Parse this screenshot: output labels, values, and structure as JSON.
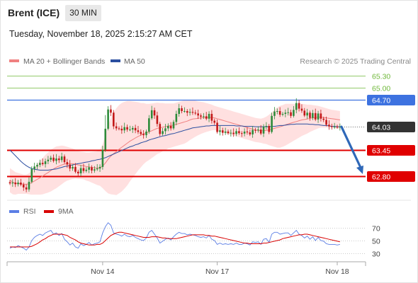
{
  "header": {
    "instrument": "Brent (ICE)",
    "timeframe": "30 MIN",
    "timestamp": "Tuesday, November 18, 2025 2:15:27 AM CET"
  },
  "copyright": "Research © 2025 Trading Central",
  "colors": {
    "bullish": "#2e8b3a",
    "bearish": "#c21818",
    "ma20": "#f08080",
    "bands": "#ffd6d6",
    "ma50": "#2b4fa0",
    "resistance_target": "#6fb83a",
    "pivot": "#3d72e0",
    "support": "#e00000",
    "last_price": "#333333",
    "rsi": "#5b7ee5",
    "rsi_ma": "#d80000",
    "arrow": "#2f68b8"
  },
  "chart_data": [
    {
      "type": "candlestick",
      "legend": [
        {
          "name": "MA 20 + Bollinger Bands",
          "color": "#f08080"
        },
        {
          "name": "MA 50",
          "color": "#2b4fa0"
        }
      ],
      "legend_position": "top-left",
      "x_ticks": [
        "Nov 14",
        "Nov 17",
        "Nov 18"
      ],
      "ylim": [
        62.55,
        65.5
      ],
      "grid": false,
      "levels": [
        {
          "label": "65.30",
          "value": 65.3,
          "kind": "target"
        },
        {
          "label": "65.00",
          "value": 65.0,
          "kind": "target"
        },
        {
          "label": "64.70",
          "value": 64.7,
          "kind": "pivot"
        },
        {
          "label": "64.03",
          "value": 64.03,
          "kind": "last"
        },
        {
          "label": "63.45",
          "value": 63.45,
          "kind": "support"
        },
        {
          "label": "62.80",
          "value": 62.8,
          "kind": "support"
        }
      ],
      "closes": [
        62.62,
        62.64,
        62.6,
        62.64,
        62.59,
        62.52,
        62.47,
        62.66,
        62.98,
        63.04,
        63.08,
        63.13,
        63.1,
        63.17,
        63.21,
        63.26,
        63.18,
        63.24,
        63.2,
        63.29,
        63.15,
        63.09,
        62.99,
        63.03,
        62.91,
        62.87,
        63.0,
        62.93,
        62.96,
        63.02,
        62.94,
        62.97,
        62.99,
        63.03,
        63.46,
        63.98,
        64.46,
        64.38,
        64.04,
        63.99,
        63.98,
        63.94,
        64.02,
        63.96,
        63.96,
        64.0,
        63.94,
        63.9,
        63.85,
        63.82,
        63.91,
        64.24,
        64.44,
        64.31,
        64.1,
        63.85,
        63.92,
        63.99,
        64.05,
        63.99,
        64.15,
        64.35,
        64.49,
        64.42,
        64.42,
        64.38,
        64.4,
        64.38,
        64.36,
        64.31,
        64.28,
        64.29,
        64.23,
        64.35,
        64.18,
        64.13,
        63.9,
        63.94,
        63.88,
        63.91,
        63.87,
        63.88,
        63.85,
        63.92,
        63.87,
        63.86,
        63.91,
        63.89,
        63.84,
        63.95,
        63.94,
        63.96,
        63.86,
        64.03,
        64.05,
        63.9,
        64.3,
        64.41,
        64.42,
        64.33,
        64.35,
        64.38,
        64.39,
        64.3,
        64.45,
        64.62,
        64.48,
        64.43,
        64.31,
        64.38,
        64.25,
        64.37,
        64.21,
        64.36,
        64.23,
        64.2,
        64.08,
        64.04,
        64.03,
        64.03,
        64.02,
        64.03
      ],
      "ma20": [
        62.7,
        62.65,
        62.62,
        62.62,
        62.61,
        62.6,
        62.6,
        62.61,
        62.64,
        62.68,
        62.72,
        62.76,
        62.8,
        62.85,
        62.89,
        62.94,
        62.98,
        63.02,
        63.05,
        63.08,
        63.1,
        63.11,
        63.11,
        63.11,
        63.1,
        63.08,
        63.07,
        63.06,
        63.04,
        63.03,
        63.02,
        63.01,
        63.0,
        63.01,
        63.05,
        63.13,
        63.22,
        63.3,
        63.36,
        63.41,
        63.47,
        63.52,
        63.57,
        63.62,
        63.67,
        63.71,
        63.75,
        63.79,
        63.82,
        63.86,
        63.88,
        63.9,
        63.93,
        63.96,
        63.99,
        64.0,
        64.02,
        64.03,
        64.05,
        64.06,
        64.07,
        64.09,
        64.11,
        64.13,
        64.15,
        64.17,
        64.2,
        64.22,
        64.23,
        64.24,
        64.25,
        64.26,
        64.26,
        64.26,
        64.26,
        64.25,
        64.23,
        64.21,
        64.19,
        64.17,
        64.15,
        64.13,
        64.11,
        64.09,
        64.07,
        64.05,
        64.03,
        64.01,
        63.99,
        63.97,
        63.95,
        63.94,
        63.93,
        63.93,
        63.94,
        63.95,
        63.97,
        63.99,
        64.01,
        64.03,
        64.05,
        64.08,
        64.1,
        64.12,
        64.14,
        64.16,
        64.18,
        64.2,
        64.21,
        64.22,
        64.24,
        64.25,
        64.26,
        64.27,
        64.27,
        64.26,
        64.25,
        64.24,
        64.23,
        64.22,
        64.21,
        64.2
      ],
      "band_width": [
        0.3,
        0.3,
        0.28,
        0.26,
        0.25,
        0.24,
        0.24,
        0.26,
        0.3,
        0.34,
        0.38,
        0.42,
        0.45,
        0.48,
        0.5,
        0.52,
        0.52,
        0.52,
        0.5,
        0.48,
        0.45,
        0.42,
        0.4,
        0.38,
        0.36,
        0.35,
        0.34,
        0.34,
        0.35,
        0.36,
        0.38,
        0.4,
        0.42,
        0.45,
        0.55,
        0.7,
        0.85,
        0.95,
        1.02,
        1.08,
        1.1,
        1.1,
        1.08,
        1.05,
        1.0,
        0.95,
        0.9,
        0.85,
        0.8,
        0.76,
        0.72,
        0.7,
        0.68,
        0.66,
        0.64,
        0.62,
        0.6,
        0.58,
        0.56,
        0.55,
        0.54,
        0.54,
        0.54,
        0.54,
        0.54,
        0.52,
        0.5,
        0.48,
        0.45,
        0.42,
        0.4,
        0.38,
        0.36,
        0.34,
        0.32,
        0.3,
        0.3,
        0.3,
        0.3,
        0.3,
        0.3,
        0.3,
        0.3,
        0.3,
        0.3,
        0.3,
        0.3,
        0.3,
        0.3,
        0.3,
        0.3,
        0.3,
        0.3,
        0.32,
        0.34,
        0.38,
        0.42,
        0.46,
        0.5,
        0.52,
        0.52,
        0.52,
        0.5,
        0.48,
        0.46,
        0.44,
        0.42,
        0.4,
        0.38,
        0.36,
        0.34,
        0.32,
        0.3,
        0.28,
        0.26,
        0.25,
        0.24,
        0.23,
        0.22,
        0.22,
        0.22,
        0.22
      ],
      "ma50": [
        63.45,
        63.38,
        63.31,
        63.24,
        63.17,
        63.11,
        63.06,
        63.02,
        62.99,
        62.97,
        62.96,
        62.95,
        62.95,
        62.95,
        62.95,
        62.96,
        62.97,
        62.98,
        63.0,
        63.02,
        63.04,
        63.05,
        63.07,
        63.08,
        63.1,
        63.11,
        63.12,
        63.14,
        63.15,
        63.16,
        63.18,
        63.19,
        63.21,
        63.22,
        63.24,
        63.26,
        63.29,
        63.32,
        63.35,
        63.38,
        63.41,
        63.44,
        63.47,
        63.5,
        63.53,
        63.55,
        63.58,
        63.6,
        63.63,
        63.65,
        63.67,
        63.7,
        63.72,
        63.74,
        63.76,
        63.78,
        63.8,
        63.81,
        63.83,
        63.85,
        63.86,
        63.88,
        63.9,
        63.92,
        63.94,
        63.96,
        63.98,
        64.0,
        64.01,
        64.02,
        64.03,
        64.04,
        64.05,
        64.05,
        64.06,
        64.06,
        64.06,
        64.06,
        64.06,
        64.06,
        64.06,
        64.06,
        64.06,
        64.05,
        64.05,
        64.05,
        64.04,
        64.04,
        64.04,
        64.04,
        64.03,
        64.03,
        64.03,
        64.03,
        64.03,
        64.03,
        64.04,
        64.04,
        64.05,
        64.06,
        64.06,
        64.07,
        64.08,
        64.09,
        64.09,
        64.1,
        64.1,
        64.1,
        64.1,
        64.1,
        64.09,
        64.09,
        64.08,
        64.08,
        64.07,
        64.06,
        64.06,
        64.05,
        64.04,
        64.04,
        64.03,
        64.03
      ],
      "projection": {
        "from": 64.03,
        "to": 62.8
      }
    },
    {
      "type": "line",
      "legend": [
        {
          "name": "RSI",
          "color": "#5b7ee5"
        },
        {
          "name": "9MA",
          "color": "#d80000"
        }
      ],
      "legend_position": "top-left",
      "ylim": [
        25,
        80
      ],
      "y_ticks": [
        70,
        50,
        30
      ],
      "series": [
        {
          "name": "RSI",
          "values": [
            38,
            40,
            39,
            42,
            40,
            38,
            35,
            40,
            50,
            55,
            58,
            60,
            58,
            62,
            64,
            66,
            60,
            62,
            58,
            61,
            52,
            48,
            43,
            46,
            40,
            38,
            45,
            42,
            44,
            47,
            43,
            45,
            46,
            48,
            62,
            72,
            78,
            74,
            62,
            60,
            59,
            57,
            60,
            57,
            56,
            58,
            55,
            53,
            51,
            50,
            54,
            63,
            66,
            60,
            54,
            46,
            49,
            52,
            54,
            51,
            56,
            60,
            63,
            61,
            61,
            59,
            60,
            59,
            58,
            56,
            55,
            56,
            54,
            58,
            52,
            50,
            44,
            46,
            44,
            45,
            44,
            45,
            44,
            46,
            44,
            44,
            46,
            45,
            43,
            48,
            47,
            48,
            44,
            52,
            53,
            47,
            60,
            63,
            63,
            60,
            61,
            62,
            62,
            58,
            62,
            66,
            60,
            58,
            54,
            57,
            52,
            56,
            50,
            55,
            50,
            49,
            45,
            44,
            44,
            44,
            43,
            44
          ]
        },
        {
          "name": "9MA",
          "values": [
            40,
            40,
            40,
            40,
            40,
            40,
            40,
            40,
            41,
            43,
            45,
            48,
            51,
            53,
            56,
            58,
            60,
            60,
            60,
            60,
            59,
            58,
            55,
            53,
            51,
            48,
            46,
            45,
            44,
            43,
            43,
            43,
            44,
            44,
            46,
            50,
            54,
            58,
            60,
            62,
            63,
            63,
            62,
            61,
            60,
            59,
            58,
            57,
            56,
            55,
            55,
            55,
            56,
            56,
            56,
            55,
            54,
            54,
            53,
            53,
            53,
            53,
            54,
            55,
            56,
            57,
            58,
            59,
            59,
            59,
            59,
            59,
            58,
            58,
            57,
            57,
            56,
            55,
            54,
            53,
            52,
            51,
            50,
            49,
            48,
            47,
            46,
            46,
            45,
            45,
            45,
            45,
            45,
            46,
            46,
            47,
            48,
            49,
            50,
            51,
            53,
            54,
            55,
            56,
            57,
            58,
            59,
            59,
            60,
            60,
            59,
            58,
            57,
            56,
            55,
            54,
            53,
            52,
            51,
            50,
            49,
            48
          ]
        }
      ]
    }
  ]
}
